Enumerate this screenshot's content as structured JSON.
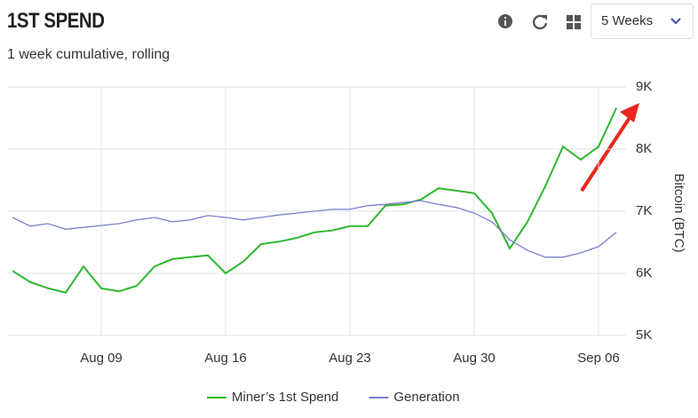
{
  "toolbar": {
    "range": "5 Weeks"
  },
  "chart_data": {
    "type": "line",
    "title": "1ST SPEND",
    "subtitle": "1 week cumulative, rolling",
    "y_label": "Bitcoin (BTC)",
    "x": [
      "Aug 04",
      "Aug 05",
      "Aug 06",
      "Aug 07",
      "Aug 08",
      "Aug 09",
      "Aug 10",
      "Aug 11",
      "Aug 12",
      "Aug 13",
      "Aug 14",
      "Aug 15",
      "Aug 16",
      "Aug 17",
      "Aug 18",
      "Aug 19",
      "Aug 20",
      "Aug 21",
      "Aug 22",
      "Aug 23",
      "Aug 24",
      "Aug 25",
      "Aug 26",
      "Aug 27",
      "Aug 28",
      "Aug 29",
      "Aug 30",
      "Aug 31",
      "Sep 01",
      "Sep 02",
      "Sep 03",
      "Sep 04",
      "Sep 05",
      "Sep 06",
      "Sep 07"
    ],
    "xticks": [
      "Aug 09",
      "Aug 16",
      "Aug 23",
      "Aug 30",
      "Sep 06"
    ],
    "series": [
      {
        "name": "Miner’s 1st Spend",
        "color": "#2eb82e",
        "values": [
          6040,
          5860,
          5760,
          5690,
          6110,
          5760,
          5710,
          5800,
          6110,
          6230,
          6260,
          6290,
          6000,
          6190,
          6470,
          6510,
          6570,
          6660,
          6690,
          6760,
          6760,
          7090,
          7110,
          7190,
          7370,
          7330,
          7290,
          6970,
          6400,
          6830,
          7400,
          8040,
          7830,
          8040,
          8660
        ]
      },
      {
        "name": "Generation",
        "color": "#7b7fd1",
        "values": [
          6900,
          6760,
          6800,
          6710,
          6740,
          6770,
          6800,
          6860,
          6900,
          6830,
          6860,
          6930,
          6900,
          6860,
          6900,
          6940,
          6970,
          7000,
          7030,
          7030,
          7090,
          7110,
          7140,
          7170,
          7110,
          7060,
          6970,
          6830,
          6540,
          6370,
          6260,
          6260,
          6330,
          6430,
          6660
        ]
      }
    ],
    "ylim": [
      5000,
      9000
    ],
    "yticks": [
      {
        "value": 5000,
        "label": "5K"
      },
      {
        "value": 6000,
        "label": "6K"
      },
      {
        "value": 7000,
        "label": "7K"
      },
      {
        "value": 8000,
        "label": "8K"
      },
      {
        "value": 9000,
        "label": "9K"
      }
    ],
    "grid": true,
    "legend": "bottom"
  }
}
